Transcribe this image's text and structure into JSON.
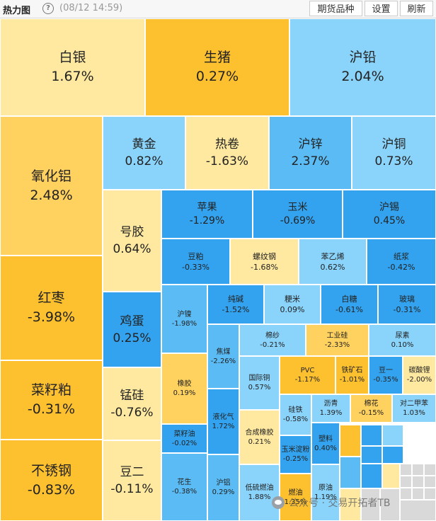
{
  "header": {
    "title": "热力图",
    "timestamp": "(08/12 14:59)",
    "buttons": {
      "variety": "期货品种",
      "settings": "设置",
      "refresh": "刷新"
    }
  },
  "colors": {
    "pale_yellow": "#ffe9a0",
    "yellow": "#ffd15f",
    "orange": "#fdc02f",
    "light_blue": "#8ad3fa",
    "blue": "#33a3ef",
    "mid_blue": "#5bbcf5",
    "grey": "#d9d9d9"
  },
  "tiles": [
    {
      "name": "白银",
      "change": "1.67%",
      "color": "pale_yellow"
    },
    {
      "name": "生猪",
      "change": "0.27%",
      "color": "orange"
    },
    {
      "name": "沪铅",
      "change": "2.04%",
      "color": "light_blue"
    },
    {
      "name": "氧化铝",
      "change": "2.48%",
      "color": "yellow"
    },
    {
      "name": "黄金",
      "change": "0.82%",
      "color": "light_blue"
    },
    {
      "name": "热卷",
      "change": "-1.63%",
      "color": "pale_yellow"
    },
    {
      "name": "沪锌",
      "change": "2.37%",
      "color": "mid_blue"
    },
    {
      "name": "沪铜",
      "change": "0.73%",
      "color": "light_blue"
    },
    {
      "name": "号胶",
      "change": "0.64%",
      "color": "pale_yellow"
    },
    {
      "name": "苹果",
      "change": "-1.29%",
      "color": "blue"
    },
    {
      "name": "玉米",
      "change": "-0.69%",
      "color": "blue"
    },
    {
      "name": "沪锡",
      "change": "0.45%",
      "color": "blue"
    },
    {
      "name": "红枣",
      "change": "-3.98%",
      "color": "orange"
    },
    {
      "name": "豆粕",
      "change": "-0.33%",
      "color": "blue"
    },
    {
      "name": "螺纹钢",
      "change": "-1.68%",
      "color": "pale_yellow"
    },
    {
      "name": "苯乙烯",
      "change": "0.62%",
      "color": "light_blue"
    },
    {
      "name": "纸浆",
      "change": "-0.42%",
      "color": "blue"
    },
    {
      "name": "鸡蛋",
      "change": "0.25%",
      "color": "blue"
    },
    {
      "name": "沪镍",
      "change": "-1.98%",
      "color": "mid_blue"
    },
    {
      "name": "纯碱",
      "change": "-1.52%",
      "color": "blue"
    },
    {
      "name": "粳米",
      "change": "0.09%",
      "color": "light_blue"
    },
    {
      "name": "白糖",
      "change": "-0.61%",
      "color": "blue"
    },
    {
      "name": "玻璃",
      "change": "-0.31%",
      "color": "blue"
    },
    {
      "name": "焦煤",
      "change": "-2.26%",
      "color": "mid_blue"
    },
    {
      "name": "棉纱",
      "change": "-0.21%",
      "color": "light_blue"
    },
    {
      "name": "工业硅",
      "change": "-2.33%",
      "color": "yellow"
    },
    {
      "name": "尿素",
      "change": "0.10%",
      "color": "light_blue"
    },
    {
      "name": "菜籽粕",
      "change": "-0.31%",
      "color": "orange"
    },
    {
      "name": "橡胶",
      "change": "0.19%",
      "color": "yellow"
    },
    {
      "name": "国际铜",
      "change": "0.57%",
      "color": "light_blue"
    },
    {
      "name": "PVC",
      "change": "-1.17%",
      "color": "orange"
    },
    {
      "name": "铁矿石",
      "change": "-1.01%",
      "color": "orange"
    },
    {
      "name": "豆一",
      "change": "-0.35%",
      "color": "blue"
    },
    {
      "name": "碳酸锂",
      "change": "-2.00%",
      "color": "pale_yellow"
    },
    {
      "name": "锰硅",
      "change": "-0.76%",
      "color": "pale_yellow"
    },
    {
      "name": "液化气",
      "change": "1.72%",
      "color": "blue"
    },
    {
      "name": "硅铁",
      "change": "-0.58%",
      "color": "light_blue"
    },
    {
      "name": "沥青",
      "change": "1.39%",
      "color": "light_blue"
    },
    {
      "name": "棉花",
      "change": "-0.15%",
      "color": "yellow"
    },
    {
      "name": "对二甲苯",
      "change": "1.03%",
      "color": "light_blue"
    },
    {
      "name": "菜籽油",
      "change": "-0.02%",
      "color": "blue"
    },
    {
      "name": "合成橡胶",
      "change": "0.21%",
      "color": "pale_yellow"
    },
    {
      "name": "玉米淀粉",
      "change": "-0.25%",
      "color": "blue"
    },
    {
      "name": "塑料",
      "change": "0.40%",
      "color": "blue"
    },
    {
      "name": "不锈钢",
      "change": "-0.83%",
      "color": "orange"
    },
    {
      "name": "豆二",
      "change": "-0.11%",
      "color": "pale_yellow"
    },
    {
      "name": "花生",
      "change": "-0.38%",
      "color": "mid_blue"
    },
    {
      "name": "沪铝",
      "change": "0.29%",
      "color": "mid_blue"
    },
    {
      "name": "低硫燃油",
      "change": "1.88%",
      "color": "light_blue"
    },
    {
      "name": "燃油",
      "change": "1.35%",
      "color": "orange"
    },
    {
      "name": "原油",
      "change": "1.19%",
      "color": "light_blue"
    }
  ],
  "small_tiles": [
    "orange",
    "blue",
    "blue",
    "light_blue",
    "blue",
    "mid_blue",
    "blue",
    "pale_yellow",
    "pale_yellow",
    "grey",
    "grey",
    "grey",
    "grey",
    "grey",
    "grey",
    "grey",
    "grey",
    "grey",
    "grey",
    "grey",
    "grey"
  ],
  "watermark": "公众号 · 交易开拓者TB"
}
